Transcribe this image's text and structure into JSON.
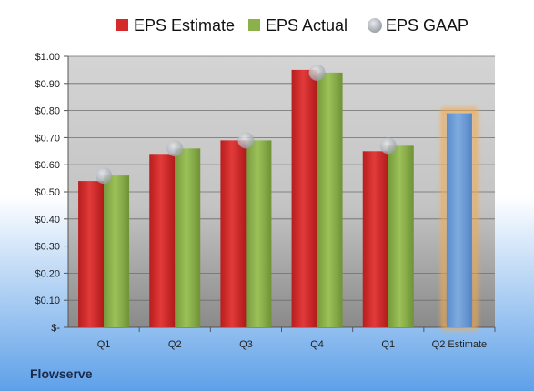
{
  "chart_data": {
    "type": "bar",
    "categories": [
      "Q1",
      "Q2",
      "Q3",
      "Q4",
      "Q1",
      "Q2 Estimate"
    ],
    "series": [
      {
        "name": "EPS Estimate",
        "color": "#d42a2a",
        "values": [
          0.54,
          0.64,
          0.69,
          0.95,
          0.65,
          null
        ]
      },
      {
        "name": "EPS Actual",
        "color": "#8cb04a",
        "values": [
          0.56,
          0.66,
          0.69,
          0.94,
          0.67,
          null
        ]
      },
      {
        "name": "EPS GAAP",
        "color": "#b8bcc4",
        "values": [
          0.56,
          0.66,
          0.69,
          0.94,
          0.67,
          null
        ]
      }
    ],
    "estimate": {
      "category": "Q2 Estimate",
      "value": 0.79,
      "color": "#6f9ed6",
      "glow": "#f5a94a"
    },
    "yticks": [
      "$-",
      "$0.10",
      "$0.20",
      "$0.30",
      "$0.40",
      "$0.50",
      "$0.60",
      "$0.70",
      "$0.80",
      "$0.90",
      "$1.00"
    ],
    "ylim": [
      0,
      1.0
    ],
    "legend_position": "top",
    "grid": true
  },
  "company": "Flowserve"
}
